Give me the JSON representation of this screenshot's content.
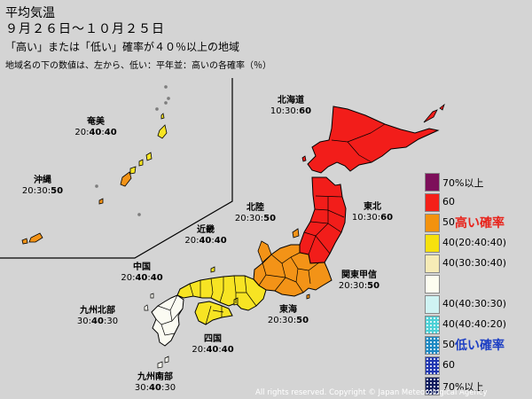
{
  "header": {
    "title": "平均気温",
    "period": "９月２６日〜１０月２５日",
    "subtitle": "「高い」または「低い」確率が４０％以上の地域",
    "note": "地域名の下の数値は、左から、低い：平年並：高いの各確率（％）"
  },
  "regions": [
    {
      "id": "hokkaido",
      "name": "北海道",
      "low": "10",
      "normal": "30",
      "high": "60",
      "emph": "high"
    },
    {
      "id": "tohoku",
      "name": "東北",
      "low": "10",
      "normal": "30",
      "high": "60",
      "emph": "high"
    },
    {
      "id": "amami",
      "name": "奄美",
      "low": "20",
      "normal": "40",
      "high": "40",
      "emph": "both"
    },
    {
      "id": "okinawa",
      "name": "沖縄",
      "low": "20",
      "normal": "30",
      "high": "50",
      "emph": "high"
    },
    {
      "id": "hokuriku",
      "name": "北陸",
      "low": "20",
      "normal": "30",
      "high": "50",
      "emph": "high"
    },
    {
      "id": "kinki",
      "name": "近畿",
      "low": "20",
      "normal": "40",
      "high": "40",
      "emph": "both"
    },
    {
      "id": "kanto",
      "name": "関東甲信",
      "low": "20",
      "normal": "30",
      "high": "50",
      "emph": "high"
    },
    {
      "id": "chugoku",
      "name": "中国",
      "low": "20",
      "normal": "40",
      "high": "40",
      "emph": "both"
    },
    {
      "id": "tokai",
      "name": "東海",
      "low": "20",
      "normal": "30",
      "high": "50",
      "emph": "high"
    },
    {
      "id": "kyushu_n",
      "name": "九州北部",
      "low": "30",
      "normal": "40",
      "high": "30",
      "emph": "normal"
    },
    {
      "id": "shikoku",
      "name": "四国",
      "low": "20",
      "normal": "40",
      "high": "40",
      "emph": "both"
    },
    {
      "id": "kyushu_s",
      "name": "九州南部",
      "low": "30",
      "normal": "40",
      "high": "30",
      "emph": "normal"
    }
  ],
  "legend": [
    {
      "label": "70%以上",
      "color": "#7d0f5a",
      "dots": false
    },
    {
      "label": "60",
      "color": "#f42019",
      "dots": false
    },
    {
      "label": "50",
      "color": "#f3920e",
      "dots": false,
      "big": "高い確率",
      "big_color": "#e8231b"
    },
    {
      "label": "40(20:40:40)",
      "color": "#f6e10e",
      "dots": false
    },
    {
      "label": "40(30:30:40)",
      "color": "#f6ebb6",
      "dots": false
    },
    {
      "label": "",
      "color": "#fdfdf0",
      "dots": false
    },
    {
      "label": "40(40:30:30)",
      "color": "#cff3f3",
      "dots": false
    },
    {
      "label": "40(40:40:20)",
      "color": "#4bd0d6",
      "dots": true
    },
    {
      "label": "50",
      "color": "#1c88c2",
      "dots": true,
      "big": "低い確率",
      "big_color": "#1d3fc4"
    },
    {
      "label": "60",
      "color": "#1f35b0",
      "dots": true
    },
    {
      "label": "70%以上",
      "color": "#0d1a5c",
      "dots": true
    }
  ],
  "colors": {
    "high60": "#f21d1a",
    "high50": "#f39317",
    "both40": "#f7e423",
    "normal": "#fbfbf2",
    "border": "#000000"
  },
  "copyright": "All rights reserved. Copyright © Japan Meteorological Agency"
}
